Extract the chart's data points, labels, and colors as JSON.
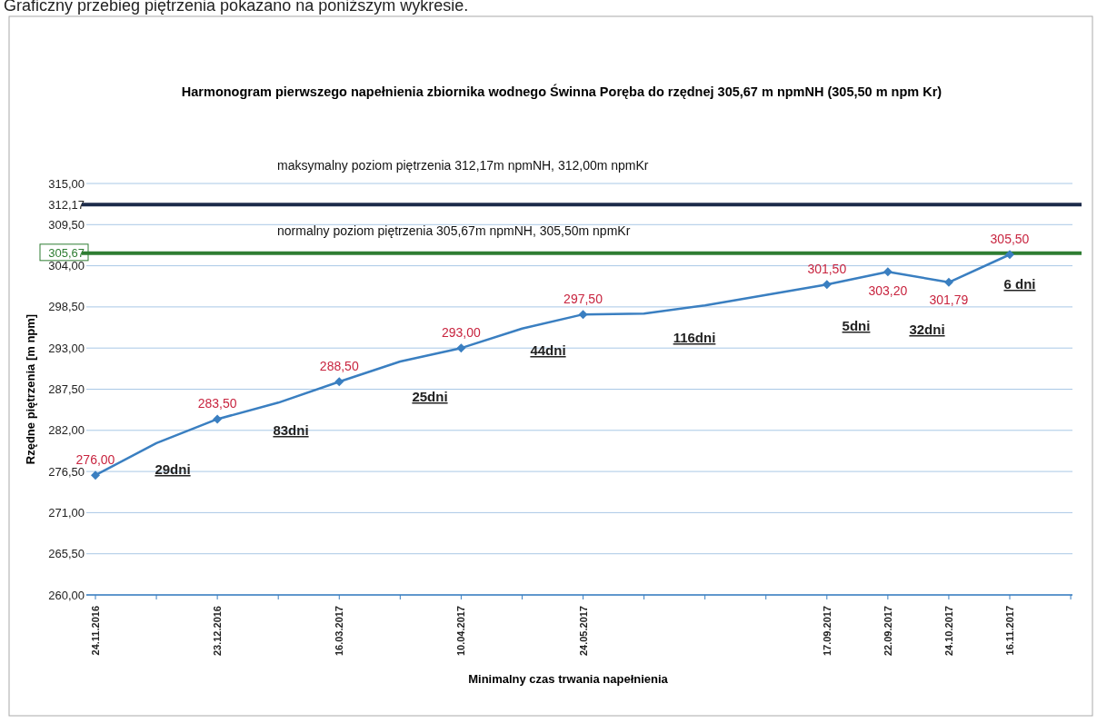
{
  "chart_data": {
    "type": "line",
    "title": "Harmonogram pierwszego napełnienia zbiornika wodnego Świnna Poręba do rzędnej 305,67 m npmNH (305,50 m npm Kr)",
    "xlabel": "Minimalny czas trwania napełnienia",
    "ylabel": "Rzędne piętrzenia  [m npm]",
    "categories": [
      "24.11.2016",
      null,
      "23.12.2016",
      null,
      "16.03.2017",
      null,
      "10.04.2017",
      null,
      "24.05.2017",
      null,
      null,
      null,
      "17.09.2017",
      "22.09.2017",
      "24.10.2017",
      "16.11.2017"
    ],
    "series": [
      {
        "color": "#3a7fc1",
        "marker": "none",
        "values": [
          276,
          280.3,
          283.5,
          285.7,
          288.5,
          291.2,
          293,
          295.6,
          297.5,
          297.6,
          298.7,
          300.1,
          301.5,
          303.2,
          301.79,
          305.5
        ]
      },
      {
        "type": "scatter",
        "color": "#3a7fc1",
        "marker": "diamond",
        "values": [
          276,
          null,
          283.5,
          null,
          288.5,
          null,
          293,
          null,
          297.5,
          null,
          null,
          null,
          301.5,
          303.2,
          301.79,
          305.5
        ],
        "value_labels": [
          "276,00",
          null,
          "283,50",
          null,
          "288,50",
          null,
          "293,00",
          null,
          "297,50",
          null,
          null,
          null,
          "301,50",
          "303,20",
          "301,79",
          "305,50"
        ]
      }
    ],
    "ylim": [
      260,
      315
    ],
    "yticks": [
      {
        "value": 260,
        "label": "260,00"
      },
      {
        "value": 265.5,
        "label": "265,50"
      },
      {
        "value": 271,
        "label": "271,00"
      },
      {
        "value": 276.5,
        "label": "276,50"
      },
      {
        "value": 282,
        "label": "282,00"
      },
      {
        "value": 287.5,
        "label": "287,50"
      },
      {
        "value": 293,
        "label": "293,00"
      },
      {
        "value": 298.5,
        "label": "298,50"
      },
      {
        "value": 304,
        "label": "304,00"
      },
      {
        "value": 309.5,
        "label": "309,50"
      },
      {
        "value": 315,
        "label": "315,00"
      },
      {
        "value": 312.17,
        "label": "312,17"
      },
      {
        "value": 305.67,
        "label": "305,67"
      }
    ],
    "grid": "y",
    "ref_lines": [
      {
        "axis": "y",
        "value": 312.17,
        "label": "maksymalny poziom piętrzenia 312,17m npmNH, 312,00m npmKr",
        "color": "#1c2b4a"
      },
      {
        "axis": "y",
        "value": 305.67,
        "label": "normalny poziom piętrzenia 305,67m npmNH, 305,50m npmKr",
        "color": "#2e7d32"
      }
    ],
    "annotations": [
      "Graficzny przebieg piętrzenia pokazano na poniższym wykresie.",
      "29dni",
      "83dni",
      "25dni",
      "44dni",
      "116dni",
      "5dni",
      "32dni",
      "6 dni"
    ]
  }
}
